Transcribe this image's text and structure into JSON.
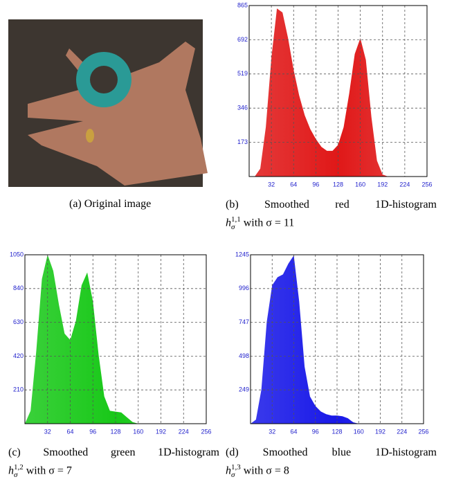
{
  "figure_a": {
    "caption": "(a) Original image"
  },
  "chart_data": [
    {
      "type": "area",
      "caption": "(b) Smoothed red 1D-histogram",
      "formula": {
        "symbol": "h",
        "superscript": "1,1",
        "subscript": "σ",
        "suffix": "with σ = 11"
      },
      "x": [
        0,
        8,
        16,
        24,
        32,
        40,
        48,
        56,
        64,
        72,
        80,
        88,
        96,
        104,
        112,
        120,
        128,
        136,
        144,
        152,
        160,
        168,
        176,
        184,
        192,
        200,
        208,
        216,
        224,
        232,
        240,
        248,
        256
      ],
      "series": [
        {
          "color": "#e01818",
          "values": [
            0,
            0,
            40,
            250,
            600,
            850,
            830,
            700,
            540,
            410,
            310,
            240,
            190,
            150,
            130,
            130,
            160,
            250,
            420,
            620,
            700,
            590,
            300,
            80,
            10,
            0,
            0,
            0,
            0,
            0,
            0,
            0,
            0
          ]
        }
      ],
      "xlim": [
        0,
        256
      ],
      "xticks": [
        32,
        64,
        96,
        128,
        160,
        192,
        224,
        256
      ],
      "ylim": [
        0,
        865
      ],
      "yticks": [
        173,
        346,
        519,
        692,
        865
      ],
      "grid": true
    },
    {
      "type": "area",
      "caption": "(c) Smoothed green 1D-histogram",
      "formula": {
        "symbol": "h",
        "superscript": "1,2",
        "subscript": "σ",
        "suffix": "with σ = 7"
      },
      "x": [
        0,
        8,
        16,
        24,
        32,
        40,
        48,
        56,
        64,
        72,
        80,
        88,
        96,
        104,
        112,
        120,
        128,
        136,
        144,
        152,
        160,
        168,
        176,
        184,
        192,
        200,
        208,
        216,
        224,
        232,
        240,
        248,
        256
      ],
      "series": [
        {
          "color": "#18c818",
          "values": [
            0,
            80,
            450,
            900,
            1050,
            950,
            740,
            560,
            520,
            640,
            860,
            940,
            760,
            430,
            170,
            80,
            75,
            70,
            40,
            10,
            0,
            0,
            0,
            0,
            0,
            0,
            0,
            0,
            0,
            0,
            0,
            0,
            0
          ]
        }
      ],
      "xlim": [
        0,
        256
      ],
      "xticks": [
        32,
        64,
        96,
        128,
        160,
        192,
        224,
        256
      ],
      "ylim": [
        0,
        1050
      ],
      "yticks": [
        210,
        420,
        630,
        840,
        1050
      ],
      "grid": true
    },
    {
      "type": "area",
      "caption": "(d) Smoothed blue 1D-histogram",
      "formula": {
        "symbol": "h",
        "superscript": "1,3",
        "subscript": "σ",
        "suffix": "with σ = 8"
      },
      "x": [
        0,
        8,
        16,
        24,
        32,
        40,
        48,
        56,
        64,
        72,
        80,
        88,
        96,
        104,
        112,
        120,
        128,
        136,
        144,
        152,
        160,
        168,
        176,
        184,
        192,
        200,
        208,
        216,
        224,
        232,
        240,
        248,
        256
      ],
      "series": [
        {
          "color": "#1818e8",
          "values": [
            0,
            30,
            250,
            750,
            1020,
            1080,
            1100,
            1180,
            1240,
            900,
            420,
            200,
            130,
            90,
            70,
            60,
            60,
            55,
            40,
            10,
            0,
            0,
            0,
            0,
            0,
            0,
            0,
            0,
            0,
            0,
            0,
            0,
            0
          ]
        }
      ],
      "xlim": [
        0,
        256
      ],
      "xticks": [
        32,
        64,
        96,
        128,
        160,
        192,
        224,
        256
      ],
      "ylim": [
        0,
        1245
      ],
      "yticks": [
        249,
        498,
        747,
        996,
        1245
      ],
      "grid": true
    }
  ]
}
